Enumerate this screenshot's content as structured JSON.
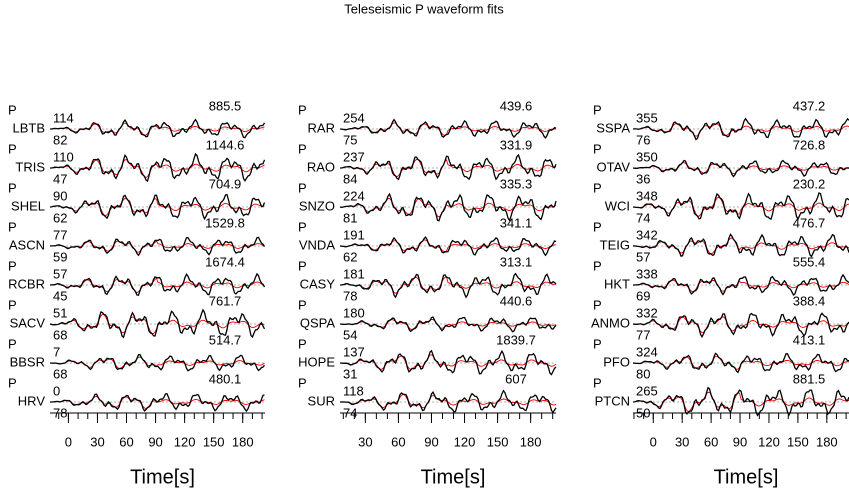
{
  "title": "Teleseismic P waveform fits",
  "xlabel": "Time[s]",
  "panels": [
    {
      "xlim": [
        -19,
        203
      ],
      "xticks": [
        0,
        30,
        60,
        90,
        120,
        150,
        180
      ],
      "stations": [
        {
          "phase": "P",
          "name": "LBTB",
          "top": 114,
          "bottom": 82,
          "amplitude": 885.5
        },
        {
          "phase": "P",
          "name": "TRIS",
          "top": 110,
          "bottom": 47,
          "amplitude": 1144.6
        },
        {
          "phase": "P",
          "name": "SHEL",
          "top": 90,
          "bottom": 62,
          "amplitude": 704.9
        },
        {
          "phase": "P",
          "name": "ASCN",
          "top": 77,
          "bottom": 59,
          "amplitude": 1529.8
        },
        {
          "phase": "P",
          "name": "RCBR",
          "top": 57,
          "bottom": 45,
          "amplitude": 1674.4
        },
        {
          "phase": "P",
          "name": "SACV",
          "top": 51,
          "bottom": 68,
          "amplitude": 761.7
        },
        {
          "phase": "P",
          "name": "BBSR",
          "top": 7,
          "bottom": 68,
          "amplitude": 514.7
        },
        {
          "phase": "P",
          "name": "HRV",
          "top": 0,
          "bottom": 78,
          "amplitude": 480.1
        }
      ]
    },
    {
      "xlim": [
        7,
        203
      ],
      "xticks": [
        30,
        60,
        90,
        120,
        150,
        180
      ],
      "stations": [
        {
          "phase": "P",
          "name": "RAR",
          "top": 254,
          "bottom": 75,
          "amplitude": 439.6
        },
        {
          "phase": "P",
          "name": "RAO",
          "top": 237,
          "bottom": 84,
          "amplitude": 331.9
        },
        {
          "phase": "P",
          "name": "SNZO",
          "top": 224,
          "bottom": 81,
          "amplitude": 335.3
        },
        {
          "phase": "P",
          "name": "VNDA",
          "top": 191,
          "bottom": 62,
          "amplitude": 341.1
        },
        {
          "phase": "P",
          "name": "CASY",
          "top": 181,
          "bottom": 78,
          "amplitude": 313.1
        },
        {
          "phase": "P",
          "name": "QSPA",
          "top": 180,
          "bottom": 54,
          "amplitude": 440.6
        },
        {
          "phase": "P",
          "name": "HOPE",
          "top": 137,
          "bottom": 31,
          "amplitude": 1839.7
        },
        {
          "phase": "P",
          "name": "SUR",
          "top": 118,
          "bottom": 74,
          "amplitude": 607.0
        }
      ]
    },
    {
      "xlim": [
        -21,
        203
      ],
      "xticks": [
        0,
        30,
        60,
        90,
        120,
        150,
        180
      ],
      "stations": [
        {
          "phase": "P",
          "name": "SSPA",
          "top": 355,
          "bottom": 76,
          "amplitude": 437.2
        },
        {
          "phase": "P",
          "name": "OTAV",
          "top": 350,
          "bottom": 36,
          "amplitude": 726.8
        },
        {
          "phase": "P",
          "name": "WCI",
          "top": 348,
          "bottom": 74,
          "amplitude": 230.2
        },
        {
          "phase": "P",
          "name": "TEIG",
          "top": 342,
          "bottom": 57,
          "amplitude": 476.7
        },
        {
          "phase": "P",
          "name": "HKT",
          "top": 338,
          "bottom": 69,
          "amplitude": 555.4
        },
        {
          "phase": "P",
          "name": "ANMO",
          "top": 332,
          "bottom": 77,
          "amplitude": 388.4
        },
        {
          "phase": "P",
          "name": "PFO",
          "top": 324,
          "bottom": 80,
          "amplitude": 413.1
        },
        {
          "phase": "P",
          "name": "PTCN",
          "top": 265,
          "bottom": 50,
          "amplitude": 881.5
        }
      ]
    }
  ]
}
